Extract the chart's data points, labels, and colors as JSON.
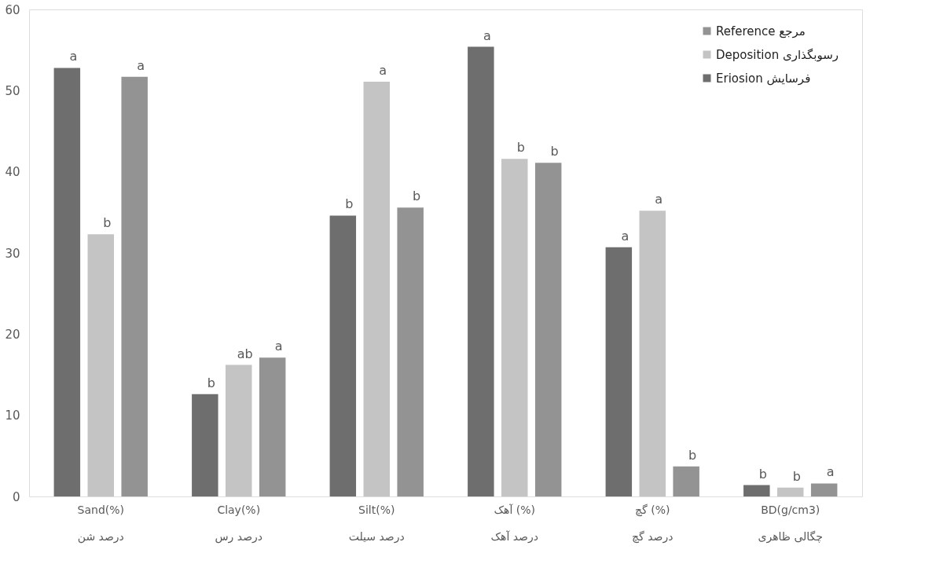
{
  "chart_data": {
    "type": "bar",
    "categories": [
      "Sand(%)\nدرصد شن",
      "Clay(%)\nدرصد رس",
      "Silt(%)\nدرصد سیلت",
      "آهک (%)\nدرصد آهک",
      "گچ (%)\nدرصد گچ",
      "BD(g/cm3)\nچگالی ظاهری"
    ],
    "series": [
      {
        "name": "Eriosion   فرسایش",
        "color": "#6e6e6e",
        "values": [
          52.8,
          12.6,
          34.6,
          55.4,
          30.7,
          1.4
        ],
        "value_labels": [
          "a",
          "b",
          "b",
          "a",
          "a",
          "b"
        ]
      },
      {
        "name": "Deposition   رسوبگذاری",
        "color": "#c4c4c4",
        "values": [
          32.3,
          16.2,
          51.1,
          41.6,
          35.2,
          1.1
        ],
        "value_labels": [
          "b",
          "ab",
          "a",
          "b",
          "a",
          "b"
        ]
      },
      {
        "name": "Reference   مرجع",
        "color": "#939393",
        "values": [
          51.7,
          17.1,
          35.6,
          41.1,
          3.7,
          1.6
        ],
        "value_labels": [
          "a",
          "a",
          "b",
          "b",
          "b",
          "a"
        ]
      }
    ],
    "ylim": [
      0,
      60
    ],
    "yticks": [
      0,
      10,
      20,
      30,
      40,
      50,
      60
    ],
    "grid": false,
    "legend": "top right"
  }
}
